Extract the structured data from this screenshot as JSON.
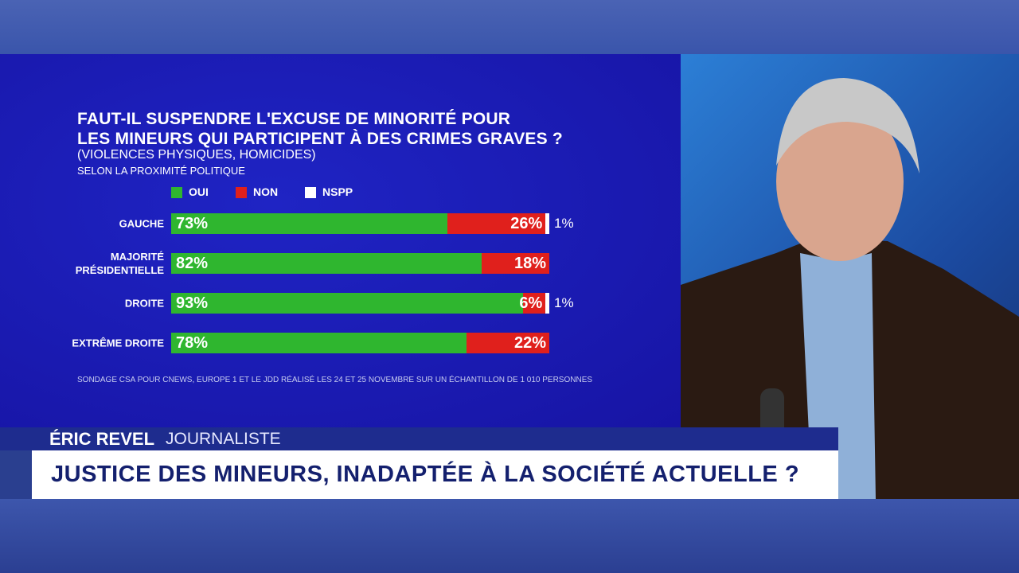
{
  "chart_data": {
    "type": "stacked-bar-horizontal",
    "title": [
      "FAUT-IL SUSPENDRE L'EXCUSE DE MINORITÉ POUR",
      "LES MINEURS QUI PARTICIPENT À DES CRIMES GRAVES ?"
    ],
    "subtitle": "(VIOLENCES PHYSIQUES, HOMICIDES)",
    "subtitle2": "SELON LA PROXIMITÉ POLITIQUE",
    "categories": [
      "GAUCHE",
      "MAJORITÉ PRÉSIDENTIELLE",
      "DROITE",
      "EXTRÊME DROITE"
    ],
    "series": [
      {
        "name": "OUI",
        "color": "#2fb62f",
        "values": [
          73,
          82,
          93,
          78
        ],
        "value_labels": [
          "73%",
          "82%",
          "93%",
          "78%"
        ]
      },
      {
        "name": "NON",
        "color": "#e0201c",
        "values": [
          26,
          18,
          6,
          22
        ],
        "value_labels": [
          "26%",
          "18%",
          "6%",
          "22%"
        ]
      },
      {
        "name": "NSPP",
        "color": "#ffffff",
        "values": [
          1,
          null,
          1,
          null
        ],
        "value_labels": [
          "1%",
          null,
          "1%",
          null
        ]
      }
    ],
    "source": "SONDAGE CSA POUR CNEWS, EUROPE 1 ET LE JDD RÉALISÉ LES 24 ET 25 NOVEMBRE SUR UN ÉCHANTILLON DE 1 010 PERSONNES"
  },
  "lower_third": {
    "name": "ÉRIC REVEL",
    "role": "JOURNALISTE",
    "headline": "JUSTICE DES MINEURS, INADAPTÉE À LA SOCIÉTÉ ACTUELLE ?"
  }
}
